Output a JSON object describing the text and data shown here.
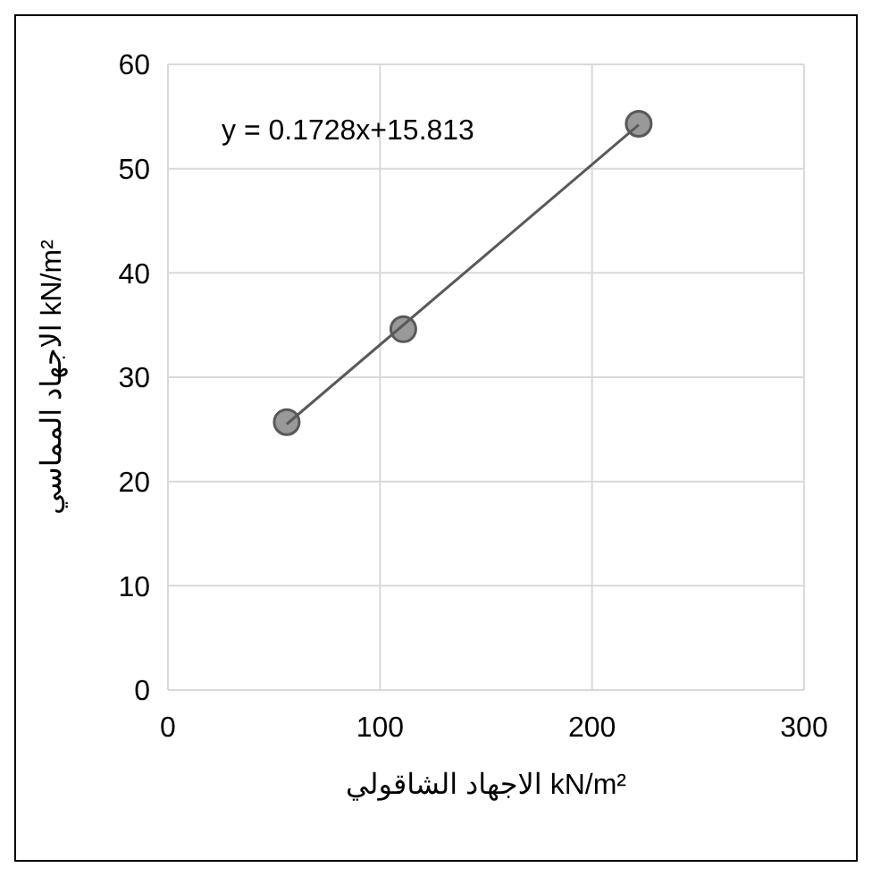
{
  "chart_data": {
    "type": "scatter",
    "xlabel": "الاجهاد الشاقولي kN/m²",
    "ylabel": "الاجهاد المماسي kN/m²",
    "xlim": [
      0,
      300
    ],
    "xticks": [
      0,
      100,
      200,
      300
    ],
    "ylim": [
      0,
      60
    ],
    "yticks": [
      0,
      10,
      20,
      30,
      40,
      50,
      60
    ],
    "grid": true,
    "series": [
      {
        "color": "#999999",
        "marker": "circle",
        "x": [
          56,
          111,
          222
        ],
        "values": [
          25.7,
          34.6,
          54.3
        ]
      },
      {
        "type": "line",
        "color": "#595959",
        "marker": "none",
        "line_style": "solid",
        "x": [
          56,
          222
        ],
        "values": [
          25.5,
          54.2
        ]
      }
    ],
    "annotations": [
      "y = 0.1728x+15.813"
    ]
  }
}
